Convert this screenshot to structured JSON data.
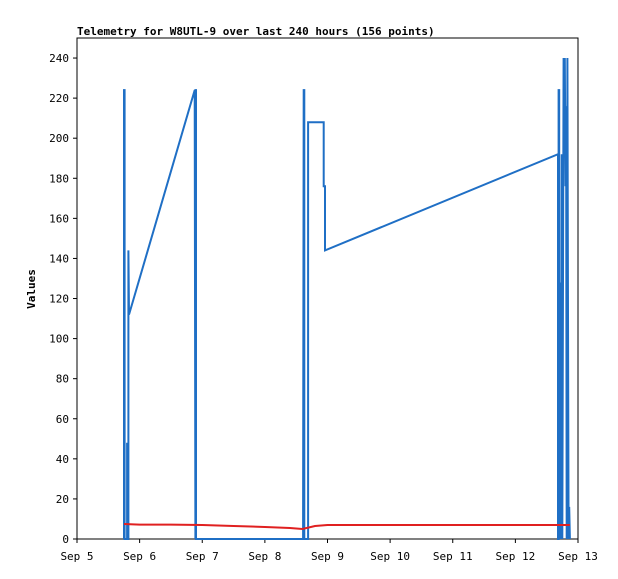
{
  "chart_data": {
    "type": "line",
    "title": "Telemetry for W8UTL-9 over last 240 hours (156 points)",
    "xlabel": "",
    "ylabel": "Values",
    "x_tick_labels": [
      "Sep 5",
      "Sep 6",
      "Sep 7",
      "Sep 8",
      "Sep 9",
      "Sep 10",
      "Sep 11",
      "Sep 12",
      "Sep 13"
    ],
    "xlim_days": [
      5,
      13
    ],
    "ylim": [
      0,
      250
    ],
    "y_ticks": [
      0,
      20,
      40,
      60,
      80,
      100,
      120,
      140,
      160,
      180,
      200,
      220,
      240
    ],
    "grid": false,
    "legend": "none",
    "series": [
      {
        "color": "#1f6fc5",
        "points": [
          [
            5.75,
            0
          ],
          [
            5.75,
            224
          ],
          [
            5.76,
            224
          ],
          [
            5.76,
            0
          ],
          [
            5.8,
            0
          ],
          [
            5.8,
            48
          ],
          [
            5.81,
            0
          ],
          [
            5.82,
            0
          ],
          [
            5.82,
            144
          ],
          [
            5.83,
            112
          ],
          [
            6.88,
            224
          ],
          [
            6.89,
            0
          ],
          [
            6.89,
            224
          ],
          [
            6.9,
            224
          ],
          [
            6.9,
            0
          ],
          [
            8.61,
            0
          ],
          [
            8.61,
            16
          ],
          [
            8.62,
            224
          ],
          [
            8.63,
            224
          ],
          [
            8.63,
            0
          ],
          [
            8.69,
            0
          ],
          [
            8.69,
            208
          ],
          [
            8.94,
            208
          ],
          [
            8.94,
            176
          ],
          [
            8.96,
            176
          ],
          [
            8.96,
            144
          ],
          [
            12.68,
            192
          ],
          [
            12.68,
            0
          ],
          [
            12.69,
            0
          ],
          [
            12.69,
            224
          ],
          [
            12.7,
            224
          ],
          [
            12.7,
            0
          ],
          [
            12.72,
            128
          ],
          [
            12.73,
            0
          ],
          [
            12.74,
            192
          ],
          [
            12.75,
            0
          ],
          [
            12.77,
            240
          ],
          [
            12.78,
            200
          ],
          [
            12.79,
            240
          ],
          [
            12.8,
            176
          ],
          [
            12.81,
            216
          ],
          [
            12.82,
            0
          ],
          [
            12.83,
            240
          ],
          [
            12.84,
            112
          ],
          [
            12.85,
            0
          ],
          [
            12.86,
            16
          ],
          [
            12.87,
            0
          ]
        ]
      },
      {
        "color": "#e02020",
        "points": [
          [
            5.75,
            7.5
          ],
          [
            6.0,
            7.2
          ],
          [
            6.5,
            7.2
          ],
          [
            7.0,
            7.0
          ],
          [
            7.5,
            6.5
          ],
          [
            8.0,
            6.0
          ],
          [
            8.4,
            5.5
          ],
          [
            8.6,
            5.0
          ],
          [
            8.8,
            6.5
          ],
          [
            9.0,
            7.0
          ],
          [
            10.0,
            7.0
          ],
          [
            11.0,
            7.0
          ],
          [
            12.0,
            7.0
          ],
          [
            12.87,
            7.0
          ]
        ]
      }
    ]
  }
}
